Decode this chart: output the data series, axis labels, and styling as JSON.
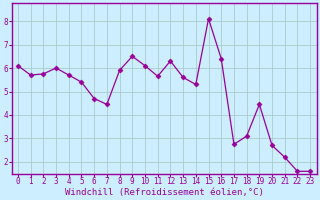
{
  "x": [
    0,
    1,
    2,
    3,
    4,
    5,
    6,
    7,
    8,
    9,
    10,
    11,
    12,
    13,
    14,
    15,
    16,
    17,
    18,
    19,
    20,
    21,
    22,
    23
  ],
  "y": [
    6.1,
    5.7,
    5.75,
    6.0,
    5.7,
    5.4,
    4.7,
    4.45,
    5.9,
    6.5,
    6.1,
    5.65,
    6.3,
    5.6,
    5.3,
    8.1,
    6.4,
    2.75,
    3.1,
    4.45,
    2.7,
    2.2,
    1.6,
    1.6
  ],
  "line_color": "#990099",
  "marker": "D",
  "marker_size": 2.5,
  "bg_color": "#cceeff",
  "grid_color": "#aacccc",
  "xlabel": "Windchill (Refroidissement éolien,°C)",
  "xlim": [
    -0.5,
    23.5
  ],
  "ylim": [
    1.5,
    8.75
  ],
  "yticks": [
    2,
    3,
    4,
    5,
    6,
    7,
    8
  ],
  "xticks": [
    0,
    1,
    2,
    3,
    4,
    5,
    6,
    7,
    8,
    9,
    10,
    11,
    12,
    13,
    14,
    15,
    16,
    17,
    18,
    19,
    20,
    21,
    22,
    23
  ],
  "tick_label_size": 5.5,
  "xlabel_size": 6.5,
  "label_color": "#990099",
  "spine_color": "#990099"
}
